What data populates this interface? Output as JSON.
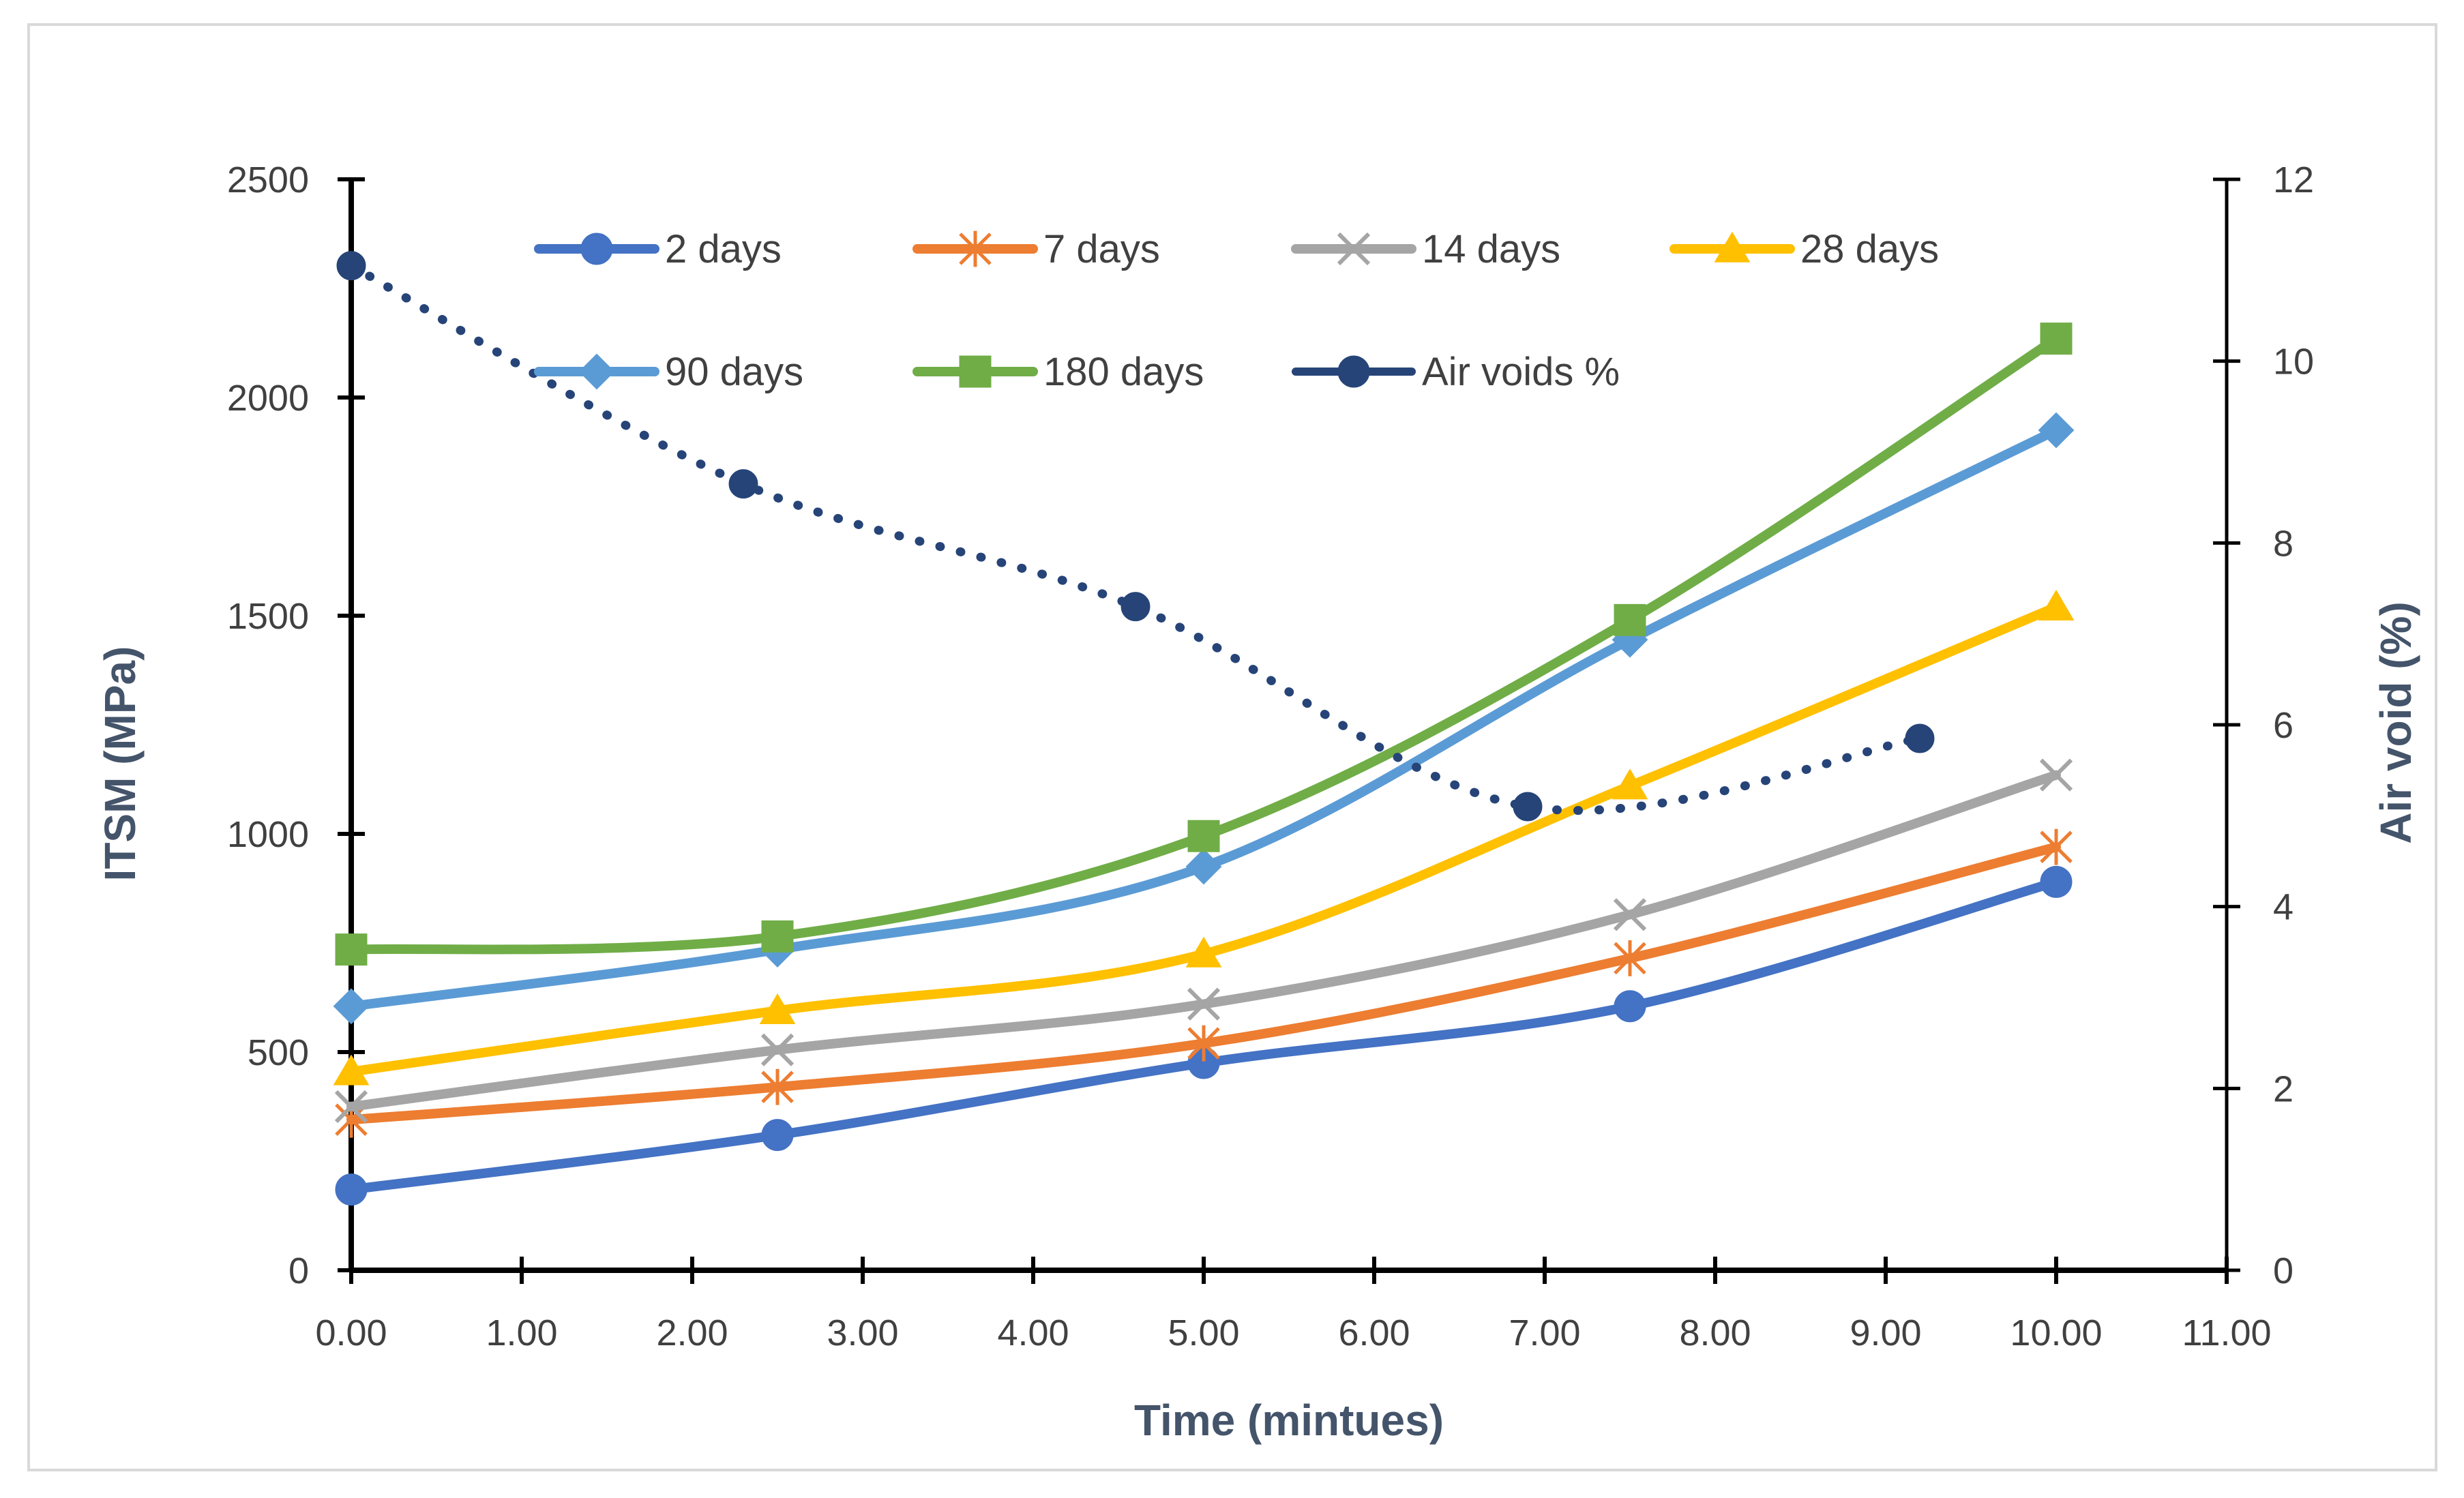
{
  "chart_data": {
    "type": "line",
    "title": "",
    "xlabel": "Time (mintues)",
    "ylabel": "ITSM (MPa)",
    "y2label": "Air void (%)",
    "xlim": [
      0,
      11
    ],
    "ylim": [
      0,
      2500
    ],
    "y2lim": [
      0,
      12
    ],
    "x_ticks": [
      0,
      1,
      2,
      3,
      4,
      5,
      6,
      7,
      8,
      9,
      10,
      11
    ],
    "x_tick_labels": [
      "0.00",
      "1.00",
      "2.00",
      "3.00",
      "4.00",
      "5.00",
      "6.00",
      "7.00",
      "8.00",
      "9.00",
      "10.00",
      "11.00"
    ],
    "y_ticks": [
      0,
      500,
      1000,
      1500,
      2000,
      2500
    ],
    "y_tick_labels": [
      "0",
      "500",
      "1000",
      "1500",
      "2000",
      "2500"
    ],
    "y2_ticks": [
      0,
      2,
      4,
      6,
      8,
      10,
      12
    ],
    "y2_tick_labels": [
      "0",
      "2",
      "4",
      "6",
      "8",
      "10",
      "12"
    ],
    "grid": false,
    "legend_position": "top",
    "series": [
      {
        "name": "2 days",
        "axis": "left",
        "color": "#4472C4",
        "marker": "circle",
        "style": "solid",
        "x": [
          0,
          2.5,
          5,
          7.5,
          10
        ],
        "values": [
          185,
          310,
          475,
          605,
          890
        ]
      },
      {
        "name": "7 days",
        "axis": "left",
        "color": "#ED7D31",
        "marker": "star",
        "style": "solid",
        "x": [
          0,
          2.5,
          5,
          7.5,
          10
        ],
        "values": [
          345,
          420,
          520,
          715,
          970
        ]
      },
      {
        "name": "14 days",
        "axis": "left",
        "color": "#A5A5A5",
        "marker": "x",
        "style": "solid",
        "x": [
          0,
          2.5,
          5,
          7.5,
          10
        ],
        "values": [
          375,
          505,
          610,
          815,
          1135
        ]
      },
      {
        "name": "28 days",
        "axis": "left",
        "color": "#FFC000",
        "marker": "triangle",
        "style": "solid",
        "x": [
          0,
          2.5,
          5,
          7.5,
          10
        ],
        "values": [
          455,
          595,
          725,
          1110,
          1520
        ]
      },
      {
        "name": "90 days",
        "axis": "left",
        "color": "#5B9BD5",
        "marker": "diamond",
        "style": "solid",
        "x": [
          0,
          2.5,
          5,
          7.5,
          10
        ],
        "values": [
          605,
          735,
          925,
          1445,
          1925
        ]
      },
      {
        "name": "180 days",
        "axis": "left",
        "color": "#70AD47",
        "marker": "square",
        "style": "solid",
        "x": [
          0,
          2.5,
          5,
          7.5,
          10
        ],
        "values": [
          735,
          765,
          995,
          1490,
          2135
        ]
      },
      {
        "name": "Air voids %",
        "axis": "right",
        "color": "#264478",
        "marker": "circle",
        "style": "dotted",
        "x": [
          0,
          2.3,
          4.6,
          6.9,
          9.2
        ],
        "values": [
          11.05,
          8.65,
          7.3,
          5.1,
          5.85
        ]
      }
    ]
  }
}
